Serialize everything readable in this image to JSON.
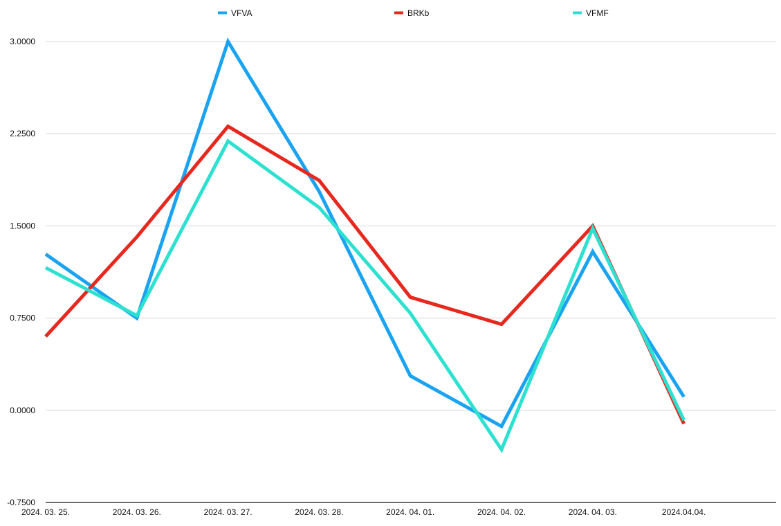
{
  "chart_data": {
    "type": "line",
    "categories": [
      "2024. 03. 25.",
      "2024. 03. 26.",
      "2024. 03. 27.",
      "2024. 03. 28.",
      "2024. 04. 01.",
      "2024. 04. 02.",
      "2024. 04. 03.",
      "2024.04.04."
    ],
    "series": [
      {
        "name": "VFVA",
        "color": "#1aa3f0",
        "values": [
          1.27,
          0.75,
          3.0,
          1.78,
          0.28,
          -0.13,
          1.29,
          0.11
        ]
      },
      {
        "name": "BRKb",
        "color": "#e6281e",
        "values": [
          0.6,
          1.41,
          2.31,
          1.87,
          0.92,
          0.7,
          1.5,
          -0.11
        ]
      },
      {
        "name": "VFMF",
        "color": "#2de0cf",
        "values": [
          1.16,
          0.77,
          2.19,
          1.65,
          0.79,
          -0.32,
          1.48,
          -0.08
        ]
      }
    ],
    "yticks": [
      "3.0000",
      "2.2500",
      "1.5000",
      "0.7500",
      "0.0000",
      "-0.7500"
    ],
    "ylim": [
      -0.75,
      3.0
    ],
    "grid": true,
    "legend_position": "top"
  }
}
